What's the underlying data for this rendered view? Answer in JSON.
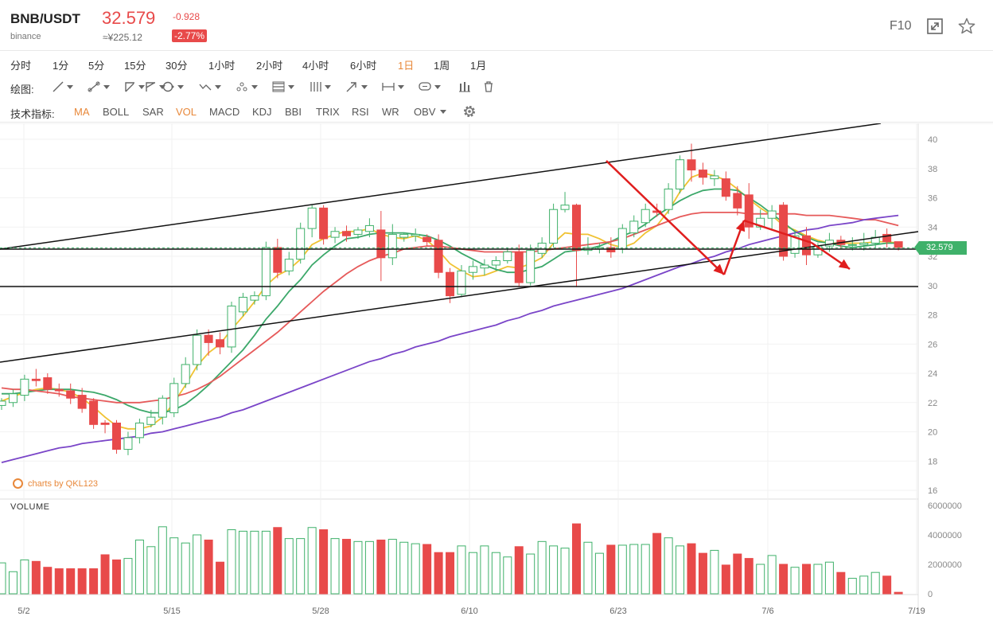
{
  "header": {
    "pair": "BNB/USDT",
    "exchange": "binance",
    "price": "32.579",
    "cny_price": "≈¥225.12",
    "change": "-0.928",
    "change_pct": "-2.77%",
    "f10_label": "F10",
    "colors": {
      "down": "#e84a4a",
      "up": "#3fb16a",
      "accent": "#e8883a"
    }
  },
  "periods": [
    {
      "label": "分时",
      "active": false
    },
    {
      "label": "1分",
      "active": false
    },
    {
      "label": "5分",
      "active": false
    },
    {
      "label": "15分",
      "active": false
    },
    {
      "label": "30分",
      "active": false
    },
    {
      "label": "1小时",
      "active": false
    },
    {
      "label": "2小时",
      "active": false
    },
    {
      "label": "4小时",
      "active": false
    },
    {
      "label": "6小时",
      "active": false
    },
    {
      "label": "1日",
      "active": true
    },
    {
      "label": "1周",
      "active": false
    },
    {
      "label": "1月",
      "active": false
    }
  ],
  "drawing": {
    "label": "绘图:",
    "tools": [
      "line-tool-icon",
      "segment-tool-icon",
      "ray-tool-icon",
      "polyline-tool-icon",
      "circle-tool-icon",
      "wave-tool-icon",
      "pattern-tool-icon",
      "fibonacci-tool-icon",
      "parallel-tool-icon",
      "arrow-tool-icon",
      "measure-tool-icon",
      "comment-tool-icon",
      "bars-tool-icon",
      "trash-icon"
    ]
  },
  "indicators": {
    "label": "技术指标:",
    "items": [
      {
        "label": "MA",
        "active": true
      },
      {
        "label": "BOLL",
        "active": false
      },
      {
        "label": "SAR",
        "active": false
      },
      {
        "label": "VOL",
        "active": true
      },
      {
        "label": "MACD",
        "active": false
      },
      {
        "label": "KDJ",
        "active": false
      },
      {
        "label": "BBI",
        "active": false
      },
      {
        "label": "TRIX",
        "active": false
      },
      {
        "label": "RSI",
        "active": false
      },
      {
        "label": "WR",
        "active": false
      },
      {
        "label": "OBV",
        "active": false
      }
    ]
  },
  "watermark": "charts by QKL123",
  "volume_title": "VOLUME",
  "current_price_tag": "32.579",
  "chart_data": {
    "type": "candlestick",
    "x_tick_labels": [
      "5/2",
      "5/15",
      "5/28",
      "6/10",
      "6/23",
      "7/6",
      "7/19"
    ],
    "y_tick_labels": [
      "40",
      "38",
      "36",
      "34",
      "32",
      "30",
      "28",
      "26",
      "24",
      "22",
      "20",
      "18",
      "16"
    ],
    "ylim": [
      16,
      40
    ],
    "volume_tick_labels": [
      "6000000",
      "4000000",
      "2000000",
      "0"
    ],
    "volume_ylim": [
      0,
      6000000
    ],
    "candles": [
      [
        21.8,
        22.1,
        21.5,
        22.3
      ],
      [
        22.0,
        22.6,
        21.7,
        22.9
      ],
      [
        22.5,
        23.6,
        22.1,
        23.9
      ],
      [
        23.6,
        23.5,
        23.1,
        24.3
      ],
      [
        23.7,
        22.9,
        22.6,
        24.0
      ],
      [
        22.9,
        22.8,
        22.4,
        23.3
      ],
      [
        22.8,
        22.3,
        21.9,
        23.3
      ],
      [
        22.5,
        21.6,
        21.3,
        23.0
      ],
      [
        22.1,
        20.5,
        20.2,
        22.3
      ],
      [
        20.6,
        20.5,
        19.9,
        20.8
      ],
      [
        20.6,
        18.8,
        18.5,
        20.8
      ],
      [
        18.8,
        19.6,
        18.4,
        20.0
      ],
      [
        19.6,
        20.6,
        19.2,
        20.9
      ],
      [
        20.5,
        21.0,
        20.3,
        21.5
      ],
      [
        21.0,
        22.3,
        20.5,
        22.5
      ],
      [
        21.3,
        23.3,
        21.0,
        23.7
      ],
      [
        23.3,
        24.6,
        23.0,
        25.1
      ],
      [
        24.6,
        26.6,
        24.2,
        27.0
      ],
      [
        26.6,
        26.1,
        25.2,
        27.0
      ],
      [
        26.3,
        25.8,
        25.3,
        26.8
      ],
      [
        25.8,
        28.6,
        25.4,
        28.9
      ],
      [
        28.2,
        29.2,
        27.9,
        29.5
      ],
      [
        29.0,
        29.3,
        28.7,
        29.6
      ],
      [
        29.3,
        32.6,
        29.0,
        33.0
      ],
      [
        32.6,
        30.9,
        30.5,
        33.2
      ],
      [
        31.0,
        31.8,
        30.7,
        32.3
      ],
      [
        31.8,
        33.9,
        31.5,
        34.3
      ],
      [
        33.9,
        35.3,
        33.3,
        35.5
      ],
      [
        35.3,
        33.2,
        32.8,
        35.5
      ],
      [
        33.3,
        33.7,
        32.9,
        34.0
      ],
      [
        33.7,
        33.4,
        33.0,
        34.1
      ],
      [
        33.5,
        33.8,
        33.2,
        34.0
      ],
      [
        33.7,
        34.1,
        33.3,
        34.6
      ],
      [
        33.8,
        31.9,
        30.3,
        35.1
      ],
      [
        31.9,
        33.5,
        31.4,
        34.2
      ],
      [
        33.3,
        33.5,
        33.0,
        33.6
      ],
      [
        33.4,
        33.5,
        33.0,
        33.9
      ],
      [
        33.3,
        33.0,
        32.7,
        33.5
      ],
      [
        33.1,
        30.9,
        30.5,
        33.5
      ],
      [
        30.9,
        29.3,
        28.8,
        31.2
      ],
      [
        29.4,
        31.0,
        29.2,
        31.4
      ],
      [
        30.9,
        31.3,
        30.4,
        31.7
      ],
      [
        31.2,
        31.4,
        30.7,
        31.8
      ],
      [
        31.4,
        31.7,
        31.0,
        32.0
      ],
      [
        31.7,
        32.3,
        31.5,
        32.6
      ],
      [
        32.3,
        30.2,
        29.9,
        32.8
      ],
      [
        30.2,
        32.4,
        30.0,
        32.8
      ],
      [
        32.2,
        32.9,
        31.9,
        33.3
      ],
      [
        32.9,
        35.2,
        32.6,
        35.6
      ],
      [
        35.2,
        35.5,
        35.0,
        36.4
      ],
      [
        35.5,
        32.4,
        29.9,
        35.6
      ],
      [
        32.4,
        32.6,
        32.1,
        33.3
      ],
      [
        32.5,
        32.6,
        32.2,
        32.9
      ],
      [
        32.6,
        32.3,
        31.9,
        33.3
      ],
      [
        32.5,
        33.9,
        32.2,
        34.2
      ],
      [
        33.6,
        34.4,
        33.3,
        34.8
      ],
      [
        34.3,
        35.2,
        34.0,
        35.6
      ],
      [
        35.1,
        35.0,
        34.7,
        35.6
      ],
      [
        35.2,
        36.6,
        34.9,
        37.0
      ],
      [
        36.6,
        38.6,
        36.3,
        38.9
      ],
      [
        38.6,
        37.9,
        37.1,
        39.7
      ],
      [
        37.9,
        37.4,
        36.9,
        38.4
      ],
      [
        37.3,
        37.5,
        36.8,
        37.9
      ],
      [
        37.3,
        36.1,
        35.8,
        37.8
      ],
      [
        36.3,
        35.3,
        34.8,
        36.8
      ],
      [
        36.2,
        34.0,
        33.2,
        37.0
      ],
      [
        34.0,
        34.6,
        33.8,
        35.2
      ],
      [
        34.6,
        35.1,
        33.8,
        35.5
      ],
      [
        35.5,
        32.0,
        31.7,
        35.7
      ],
      [
        32.2,
        33.4,
        31.9,
        33.7
      ],
      [
        33.4,
        32.1,
        31.4,
        34.0
      ],
      [
        32.1,
        32.7,
        31.9,
        32.9
      ],
      [
        32.7,
        33.1,
        32.3,
        33.6
      ],
      [
        33.1,
        32.8,
        32.5,
        33.4
      ],
      [
        32.8,
        32.8,
        32.4,
        33.3
      ],
      [
        32.8,
        32.9,
        32.4,
        33.6
      ],
      [
        32.9,
        33.3,
        32.6,
        33.8
      ],
      [
        33.5,
        33.0,
        32.6,
        33.9
      ],
      [
        33.0,
        32.6,
        32.4,
        33.0
      ]
    ],
    "volumes": [
      2100000,
      1500000,
      2300000,
      2200000,
      1800000,
      1700000,
      1700000,
      1700000,
      1700000,
      2650000,
      2300000,
      2400000,
      3650000,
      3200000,
      4550000,
      3800000,
      3450000,
      4000000,
      3650000,
      2150000,
      4350000,
      4250000,
      4250000,
      4250000,
      4500000,
      3750000,
      3750000,
      4500000,
      4350000,
      3750000,
      3700000,
      3550000,
      3550000,
      3650000,
      3700000,
      3500000,
      3400000,
      3350000,
      2800000,
      2800000,
      3250000,
      2800000,
      3250000,
      2800000,
      2500000,
      3200000,
      2700000,
      3550000,
      3250000,
      3100000,
      4750000,
      3500000,
      2750000,
      3300000,
      3300000,
      3350000,
      3350000,
      4100000,
      3800000,
      3250000,
      3400000,
      2750000,
      2950000,
      1950000,
      2700000,
      2400000,
      2000000,
      2600000,
      2000000,
      1800000,
      2000000,
      2000000,
      2150000,
      1450000,
      1050000,
      1200000,
      1450000,
      1200000,
      100000
    ],
    "ma_lines": [
      {
        "color": "#f0c232",
        "values": [
          22.1,
          22.4,
          22.7,
          22.9,
          23.0,
          22.9,
          22.7,
          22.3,
          21.7,
          21.0,
          20.4,
          20.2,
          20.2,
          20.4,
          21.0,
          22.0,
          23.2,
          24.5,
          25.4,
          26.0,
          27.0,
          27.9,
          28.9,
          30.0,
          30.7,
          31.1,
          31.8,
          32.8,
          33.2,
          33.5,
          33.7,
          33.7,
          33.9,
          33.5,
          33.3,
          33.2,
          33.4,
          33.1,
          32.4,
          31.5,
          31.0,
          30.6,
          30.7,
          31.0,
          31.3,
          31.2,
          31.5,
          31.9,
          32.9,
          33.6,
          33.5,
          33.5,
          33.2,
          32.8,
          32.6,
          32.9,
          33.6,
          34.1,
          35.1,
          36.4,
          37.4,
          37.7,
          37.5,
          37.2,
          36.6,
          35.9,
          35.3,
          34.8,
          34.1,
          33.8,
          33.4,
          33.1,
          32.9,
          32.9,
          32.9,
          32.9,
          33.0,
          33.0,
          32.9
        ]
      },
      {
        "color": "#3ca86a",
        "values": [
          22.6,
          22.6,
          22.7,
          22.8,
          22.9,
          22.9,
          22.9,
          22.8,
          22.7,
          22.5,
          22.2,
          21.8,
          21.5,
          21.3,
          21.3,
          21.5,
          21.9,
          22.5,
          23.2,
          24.0,
          24.8,
          25.6,
          26.6,
          27.7,
          28.6,
          29.6,
          30.4,
          31.4,
          32.1,
          32.7,
          33.2,
          33.3,
          33.5,
          33.6,
          33.6,
          33.6,
          33.5,
          33.4,
          33.1,
          32.7,
          32.2,
          31.8,
          31.4,
          31.1,
          30.9,
          30.9,
          31.1,
          31.3,
          31.8,
          32.3,
          32.4,
          32.5,
          32.7,
          33.0,
          33.4,
          33.7,
          34.2,
          34.8,
          35.3,
          35.8,
          36.2,
          36.5,
          36.6,
          36.6,
          36.5,
          36.0,
          35.5,
          34.9,
          34.3,
          33.7,
          33.3,
          33.0,
          32.9,
          32.7,
          32.6,
          32.7,
          32.8,
          32.9,
          32.9
        ]
      },
      {
        "color": "#e65a5a",
        "values": [
          23.0,
          22.9,
          22.9,
          22.8,
          22.7,
          22.6,
          22.4,
          22.3,
          22.2,
          22.1,
          22.0,
          22.0,
          22.0,
          22.1,
          22.2,
          22.4,
          22.6,
          22.9,
          23.3,
          23.8,
          24.4,
          25.0,
          25.6,
          26.2,
          26.8,
          27.5,
          28.2,
          28.9,
          29.6,
          30.2,
          30.8,
          31.3,
          31.7,
          32.0,
          32.2,
          32.5,
          32.6,
          32.7,
          32.7,
          32.6,
          32.5,
          32.4,
          32.3,
          32.3,
          32.3,
          32.3,
          32.3,
          32.4,
          32.5,
          32.6,
          32.7,
          32.8,
          32.9,
          33.0,
          33.2,
          33.5,
          33.8,
          34.1,
          34.4,
          34.7,
          34.9,
          35.0,
          35.0,
          35.0,
          35.0,
          34.9,
          34.9,
          34.9,
          34.9,
          34.9,
          34.8,
          34.8,
          34.8,
          34.7,
          34.6,
          34.5,
          34.5,
          34.3,
          34.1
        ]
      },
      {
        "color": "#7a45c8",
        "values": [
          17.9,
          18.1,
          18.3,
          18.5,
          18.7,
          18.9,
          19.0,
          19.2,
          19.3,
          19.4,
          19.5,
          19.6,
          19.7,
          19.9,
          20.0,
          20.2,
          20.4,
          20.6,
          20.8,
          21.0,
          21.3,
          21.5,
          21.8,
          22.1,
          22.4,
          22.7,
          23.0,
          23.3,
          23.6,
          23.9,
          24.2,
          24.5,
          24.8,
          25.0,
          25.3,
          25.5,
          25.8,
          26.0,
          26.2,
          26.5,
          26.7,
          26.9,
          27.1,
          27.3,
          27.6,
          27.8,
          28.1,
          28.3,
          28.6,
          28.8,
          29.0,
          29.2,
          29.4,
          29.6,
          29.8,
          30.1,
          30.4,
          30.7,
          31.0,
          31.3,
          31.5,
          31.8,
          32.0,
          32.3,
          32.5,
          32.8,
          33.0,
          33.2,
          33.4,
          33.6,
          33.8,
          33.9,
          34.1,
          34.2,
          34.3,
          34.5,
          34.6,
          34.7,
          34.8
        ]
      }
    ]
  }
}
